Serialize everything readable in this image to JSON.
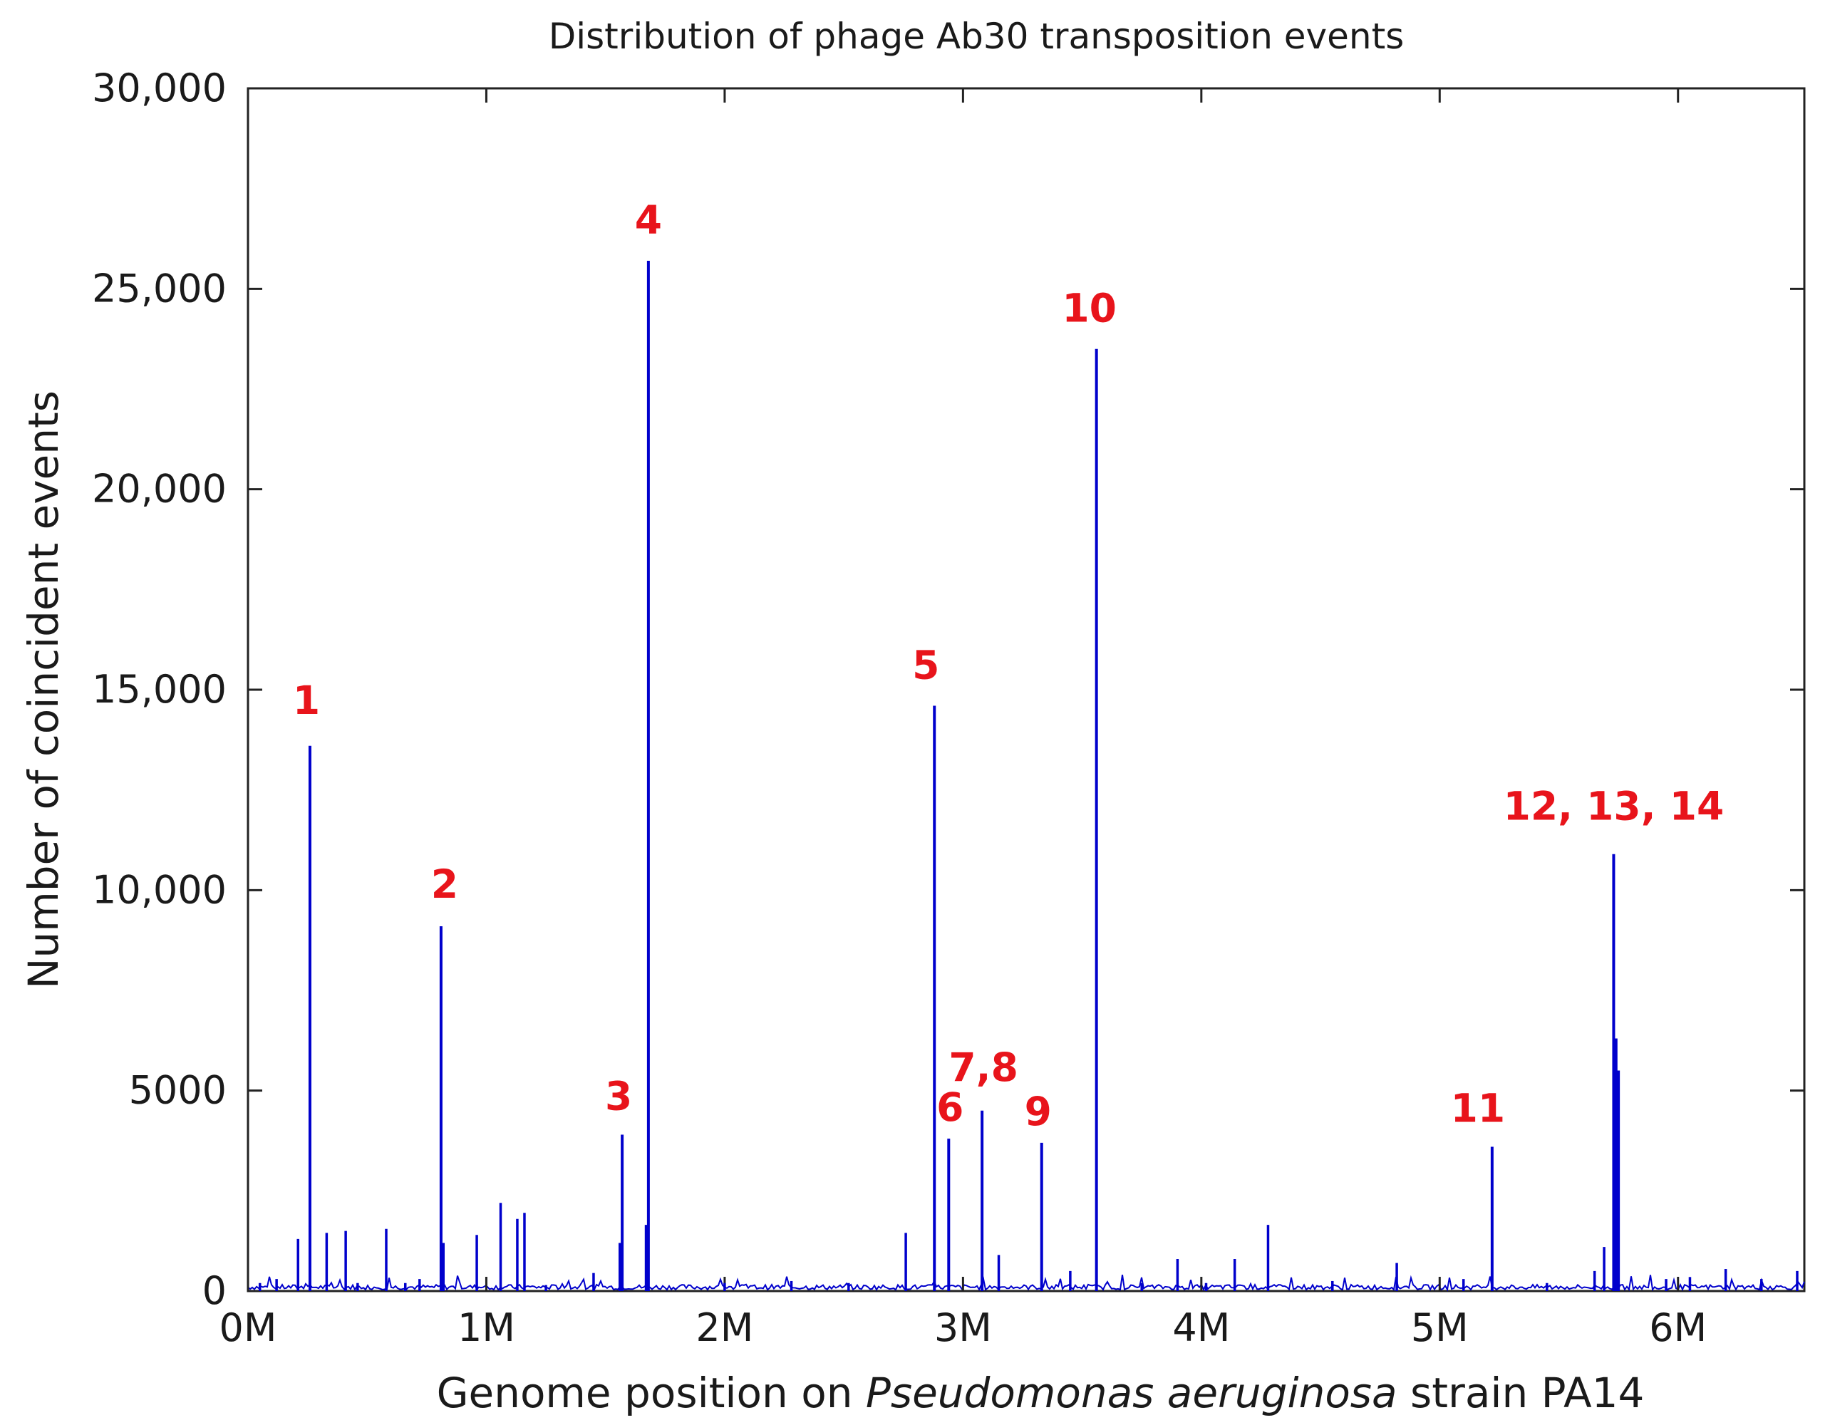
{
  "chart_data": {
    "type": "bar",
    "title": "Distribution of phage Ab30 transposition events",
    "xlabel": {
      "prefix": "Genome position on ",
      "italic": "Pseudomonas aeruginosa",
      "suffix": " strain PA14"
    },
    "ylabel": "Number of coincident events",
    "xlim": [
      0,
      6.53
    ],
    "ylim": [
      0,
      30000
    ],
    "x_unit": "Mb",
    "x_ticks": [
      {
        "value": 0,
        "label": "0M"
      },
      {
        "value": 1,
        "label": "1M"
      },
      {
        "value": 2,
        "label": "2M"
      },
      {
        "value": 3,
        "label": "3M"
      },
      {
        "value": 4,
        "label": "4M"
      },
      {
        "value": 5,
        "label": "5M"
      },
      {
        "value": 6,
        "label": "6M"
      }
    ],
    "y_ticks": [
      {
        "value": 0,
        "label": "0"
      },
      {
        "value": 5000,
        "label": "5000"
      },
      {
        "value": 10000,
        "label": "10,000"
      },
      {
        "value": 15000,
        "label": "15,000"
      },
      {
        "value": 20000,
        "label": "20,000"
      },
      {
        "value": 25000,
        "label": "25,000"
      },
      {
        "value": 30000,
        "label": "30,000"
      }
    ],
    "color": "#0000cc",
    "label_color": "#e8141b",
    "series": [
      {
        "name": "major peaks",
        "points": [
          {
            "x": 0.26,
            "y": 13600
          },
          {
            "x": 0.81,
            "y": 9100
          },
          {
            "x": 1.57,
            "y": 3900
          },
          {
            "x": 1.68,
            "y": 25700
          },
          {
            "x": 2.88,
            "y": 14600
          },
          {
            "x": 2.94,
            "y": 3800
          },
          {
            "x": 3.08,
            "y": 4500
          },
          {
            "x": 3.33,
            "y": 3700
          },
          {
            "x": 3.56,
            "y": 23500
          },
          {
            "x": 5.22,
            "y": 3600
          },
          {
            "x": 5.73,
            "y": 10900
          },
          {
            "x": 5.74,
            "y": 6300
          },
          {
            "x": 5.75,
            "y": 5500
          }
        ]
      },
      {
        "name": "minor events",
        "points": [
          {
            "x": 0.05,
            "y": 200
          },
          {
            "x": 0.12,
            "y": 300
          },
          {
            "x": 0.21,
            "y": 1300
          },
          {
            "x": 0.33,
            "y": 1450
          },
          {
            "x": 0.41,
            "y": 1500
          },
          {
            "x": 0.46,
            "y": 200
          },
          {
            "x": 0.58,
            "y": 1550
          },
          {
            "x": 0.66,
            "y": 200
          },
          {
            "x": 0.72,
            "y": 300
          },
          {
            "x": 0.82,
            "y": 1200
          },
          {
            "x": 0.96,
            "y": 1400
          },
          {
            "x": 1.06,
            "y": 2200
          },
          {
            "x": 1.13,
            "y": 1800
          },
          {
            "x": 1.16,
            "y": 1950
          },
          {
            "x": 1.25,
            "y": 150
          },
          {
            "x": 1.45,
            "y": 450
          },
          {
            "x": 1.56,
            "y": 1200
          },
          {
            "x": 1.67,
            "y": 1650
          },
          {
            "x": 2.0,
            "y": 200
          },
          {
            "x": 2.28,
            "y": 250
          },
          {
            "x": 2.52,
            "y": 200
          },
          {
            "x": 2.76,
            "y": 1450
          },
          {
            "x": 3.15,
            "y": 900
          },
          {
            "x": 3.45,
            "y": 500
          },
          {
            "x": 3.75,
            "y": 200
          },
          {
            "x": 3.9,
            "y": 800
          },
          {
            "x": 4.02,
            "y": 200
          },
          {
            "x": 4.14,
            "y": 800
          },
          {
            "x": 4.28,
            "y": 1650
          },
          {
            "x": 4.55,
            "y": 250
          },
          {
            "x": 4.82,
            "y": 700
          },
          {
            "x": 5.1,
            "y": 300
          },
          {
            "x": 5.45,
            "y": 200
          },
          {
            "x": 5.65,
            "y": 500
          },
          {
            "x": 5.69,
            "y": 1100
          },
          {
            "x": 5.95,
            "y": 300
          },
          {
            "x": 6.05,
            "y": 350
          },
          {
            "x": 6.2,
            "y": 550
          },
          {
            "x": 6.35,
            "y": 300
          },
          {
            "x": 6.5,
            "y": 500
          }
        ]
      }
    ],
    "annotations": [
      {
        "text": "1",
        "x": 0.26,
        "y": 13600
      },
      {
        "text": "2",
        "x": 0.81,
        "y": 9100
      },
      {
        "text": "3",
        "x": 1.57,
        "y": 3900
      },
      {
        "text": "4",
        "x": 1.68,
        "y": 25700
      },
      {
        "text": "5",
        "x": 2.88,
        "y": 14600
      },
      {
        "text": "6",
        "x": 2.94,
        "y": 3800
      },
      {
        "text": "7,8",
        "x": 3.08,
        "y": 4500
      },
      {
        "text": "9",
        "x": 3.33,
        "y": 3700
      },
      {
        "text": "10",
        "x": 3.56,
        "y": 23500
      },
      {
        "text": "11",
        "x": 5.22,
        "y": 3600
      },
      {
        "text": "12, 13, 14",
        "x": 5.73,
        "y": 10900
      }
    ]
  }
}
